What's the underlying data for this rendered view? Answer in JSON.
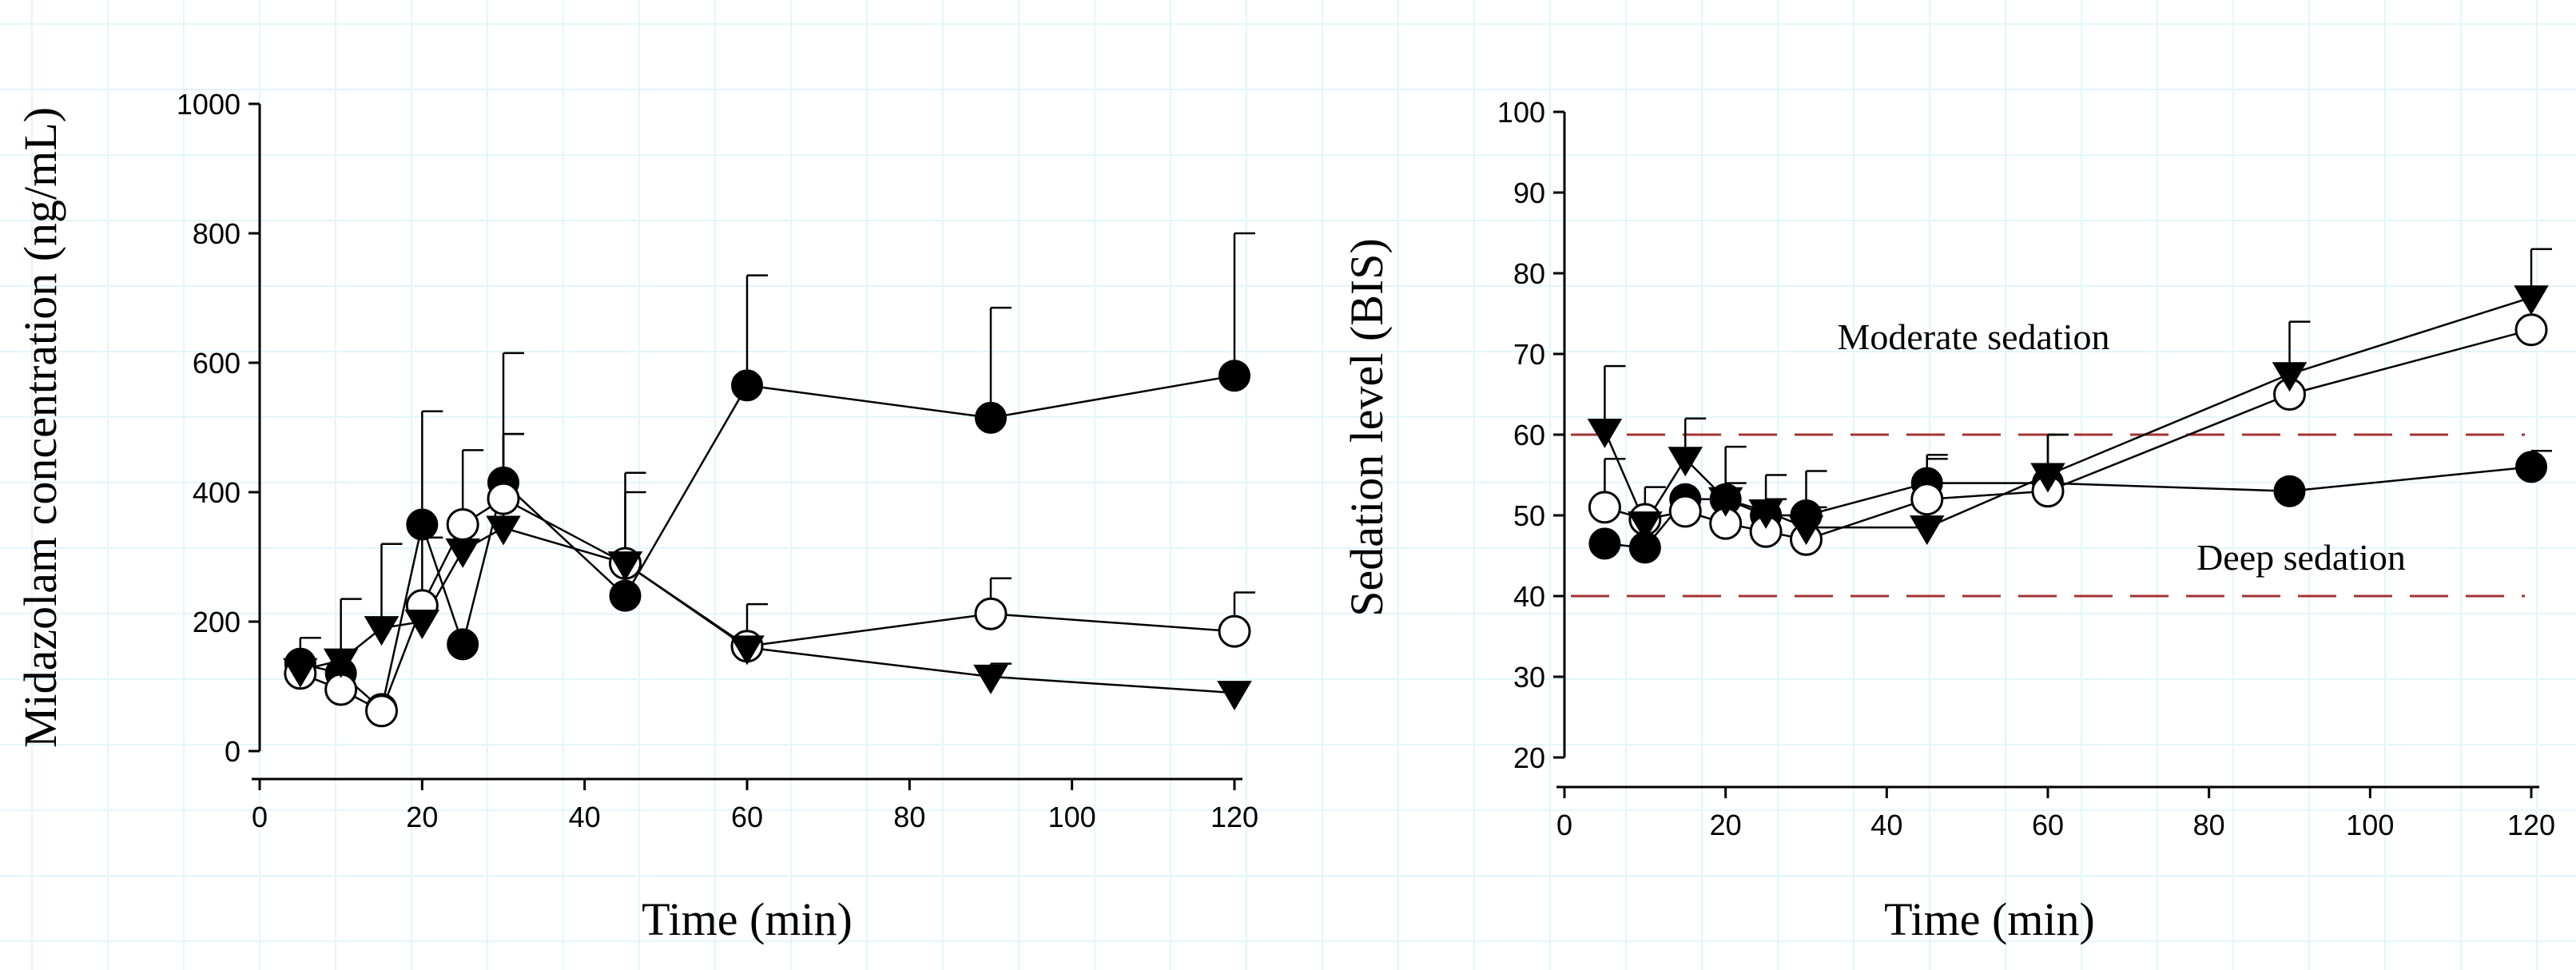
{
  "chart_data": [
    {
      "type": "line",
      "xlabel": "Time (min)",
      "ylabel": "Midazolam concentration (ng/mL)",
      "xlim": [
        0,
        120
      ],
      "ylim": [
        0,
        1000
      ],
      "xticks": [
        0,
        20,
        40,
        60,
        80,
        100,
        120
      ],
      "yticks": [
        0,
        200,
        400,
        600,
        800,
        1000
      ],
      "x": [
        5,
        10,
        15,
        20,
        25,
        30,
        45,
        60,
        90,
        120
      ],
      "series": [
        {
          "name": "filled circle",
          "marker": "filled-circle",
          "values": [
            135,
            120,
            65,
            350,
            165,
            415,
            240,
            565,
            515,
            580
          ],
          "err": [
            0,
            0,
            0,
            175,
            0,
            200,
            0,
            170,
            170,
            220
          ]
        },
        {
          "name": "open circle",
          "marker": "open-circle",
          "values": [
            120,
            95,
            62,
            225,
            350,
            390,
            290,
            162,
            212,
            185
          ],
          "err": [
            0,
            0,
            0,
            0,
            115,
            100,
            140,
            65,
            55,
            60
          ]
        },
        {
          "name": "filled triangle",
          "marker": "filled-triangle",
          "values": [
            125,
            140,
            190,
            200,
            310,
            345,
            290,
            160,
            115,
            90
          ],
          "err": [
            50,
            95,
            130,
            130,
            0,
            145,
            110,
            0,
            20,
            0
          ]
        }
      ]
    },
    {
      "type": "line",
      "xlabel": "Time (min)",
      "ylabel": "Sedation level (BIS)",
      "xlim": [
        0,
        120
      ],
      "ylim": [
        20,
        100
      ],
      "xticks": [
        0,
        20,
        40,
        60,
        80,
        100,
        120
      ],
      "yticks": [
        20,
        30,
        40,
        50,
        60,
        70,
        80,
        90,
        100
      ],
      "x": [
        5,
        10,
        15,
        20,
        25,
        30,
        45,
        60,
        90,
        120
      ],
      "reference_lines": [
        60,
        40
      ],
      "annotations": [
        "Moderate sedation",
        "Deep sedation"
      ],
      "series": [
        {
          "name": "filled circle",
          "marker": "filled-circle",
          "values": [
            46.5,
            46,
            52,
            52,
            50,
            50,
            54,
            54,
            53,
            56
          ],
          "err": [
            0,
            0,
            0,
            0,
            0,
            0,
            0,
            0,
            0,
            2
          ]
        },
        {
          "name": "open circle",
          "marker": "open-circle",
          "values": [
            51,
            49.5,
            50.5,
            49,
            48,
            47,
            52,
            53,
            65,
            73
          ],
          "err": [
            6,
            4,
            0,
            5,
            4,
            4,
            5,
            7,
            0,
            0
          ]
        },
        {
          "name": "filled triangle",
          "marker": "filled-triangle",
          "values": [
            60.5,
            49,
            57,
            52,
            50.5,
            48.5,
            48.5,
            55,
            67.5,
            77
          ],
          "err": [
            8,
            0,
            5,
            6.5,
            4.5,
            7,
            9,
            5,
            6.5,
            6
          ]
        }
      ]
    }
  ]
}
